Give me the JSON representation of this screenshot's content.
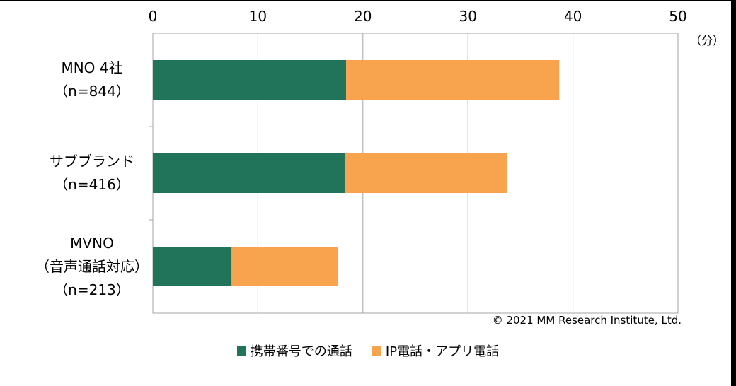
{
  "chart_data": {
    "type": "bar",
    "orientation": "horizontal",
    "stacked": true,
    "categories": [
      [
        "MNO 4社",
        "（n=844）"
      ],
      [
        "サブブランド",
        "（n=416）"
      ],
      [
        "MVNO",
        "（音声通話対応）",
        "（n=213）"
      ]
    ],
    "series": [
      {
        "name": "携帯番号での通話",
        "color": "#217359",
        "values": [
          18.4,
          18.3,
          7.5
        ]
      },
      {
        "name": "IP電話・アプリ電話",
        "color": "#F8A44E",
        "values": [
          20.3,
          15.4,
          10.1
        ]
      }
    ],
    "xlim": [
      0,
      50
    ],
    "xticks": [
      "0",
      "10",
      "20",
      "30",
      "40",
      "50"
    ],
    "unit_label": "（分）",
    "grid": true,
    "legend_position": "bottom"
  },
  "copyright": "© 2021 MM Research Institute, Ltd."
}
